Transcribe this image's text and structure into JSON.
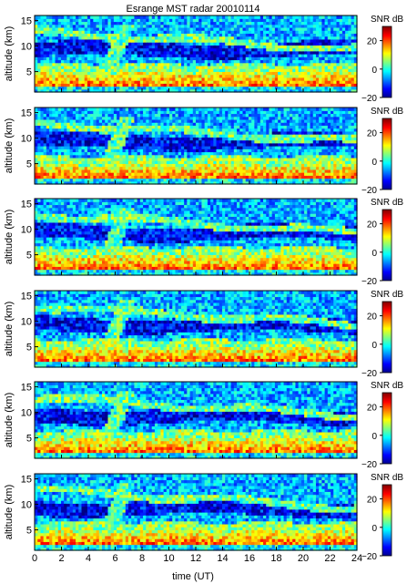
{
  "chart_data": {
    "type": "heatmap",
    "title": "Esrange MST radar 20010114",
    "xlabel": "time (UT)",
    "ylabel": "altitude (km)",
    "xlim": [
      0,
      24
    ],
    "ylim": [
      1,
      16
    ],
    "x_ticks": [
      "0",
      "2",
      "4",
      "6",
      "8",
      "10",
      "12",
      "14",
      "16",
      "18",
      "20",
      "22",
      "24"
    ],
    "y_ticks": [
      "5",
      "10",
      "15"
    ],
    "colorbar": {
      "label": "SNR dB",
      "range": [
        -20,
        30
      ],
      "ticks": [
        "20",
        "0",
        "−20"
      ],
      "colormap": "jet"
    },
    "panels": [
      {
        "index": 1,
        "variant": 0
      },
      {
        "index": 2,
        "variant": 1
      },
      {
        "index": 3,
        "variant": 2
      },
      {
        "index": 4,
        "variant": 3
      },
      {
        "index": 5,
        "variant": 4
      },
      {
        "index": 6,
        "variant": 5
      }
    ],
    "structure": {
      "low_layer_km": [
        1.5,
        5
      ],
      "low_layer_snr_db": 22,
      "tropopause_band_km": 10,
      "upper_layer_km": 13,
      "background_snr_db": -5
    }
  }
}
